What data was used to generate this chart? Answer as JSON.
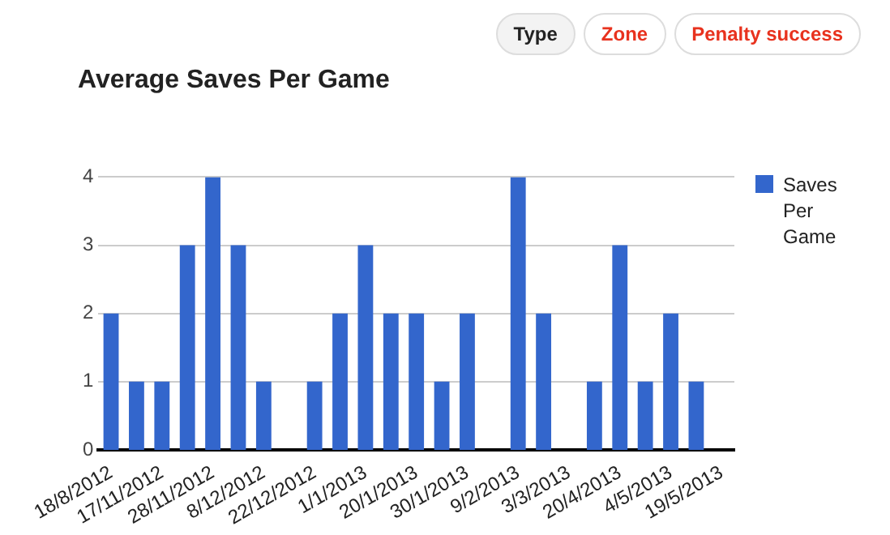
{
  "chart_data": {
    "type": "bar",
    "title": "Average Saves Per Game",
    "categories": [
      "18/8/2012",
      null,
      "17/11/2012",
      null,
      "28/11/2012",
      null,
      "8/12/2012",
      null,
      "22/12/2012",
      null,
      "1/1/2013",
      null,
      "20/1/2013",
      null,
      "30/1/2013",
      null,
      "9/2/2013",
      null,
      "3/3/2013",
      null,
      "20/4/2013",
      null,
      "4/5/2013",
      null,
      "19/5/2013"
    ],
    "series": [
      {
        "name": "Saves Per Game",
        "color": "#3366cc",
        "values": [
          2,
          1,
          1,
          3,
          4,
          3,
          1,
          0,
          1,
          2,
          3,
          2,
          2,
          1,
          2,
          0,
          4,
          2,
          0,
          1,
          3,
          1,
          2,
          1,
          0
        ]
      }
    ],
    "ylim": [
      0,
      4
    ],
    "yticks": [
      0,
      1,
      2,
      3,
      4
    ],
    "grid": "y",
    "legend": "right",
    "annotations": [
      "Type",
      "Zone",
      "Penalty success"
    ]
  }
}
